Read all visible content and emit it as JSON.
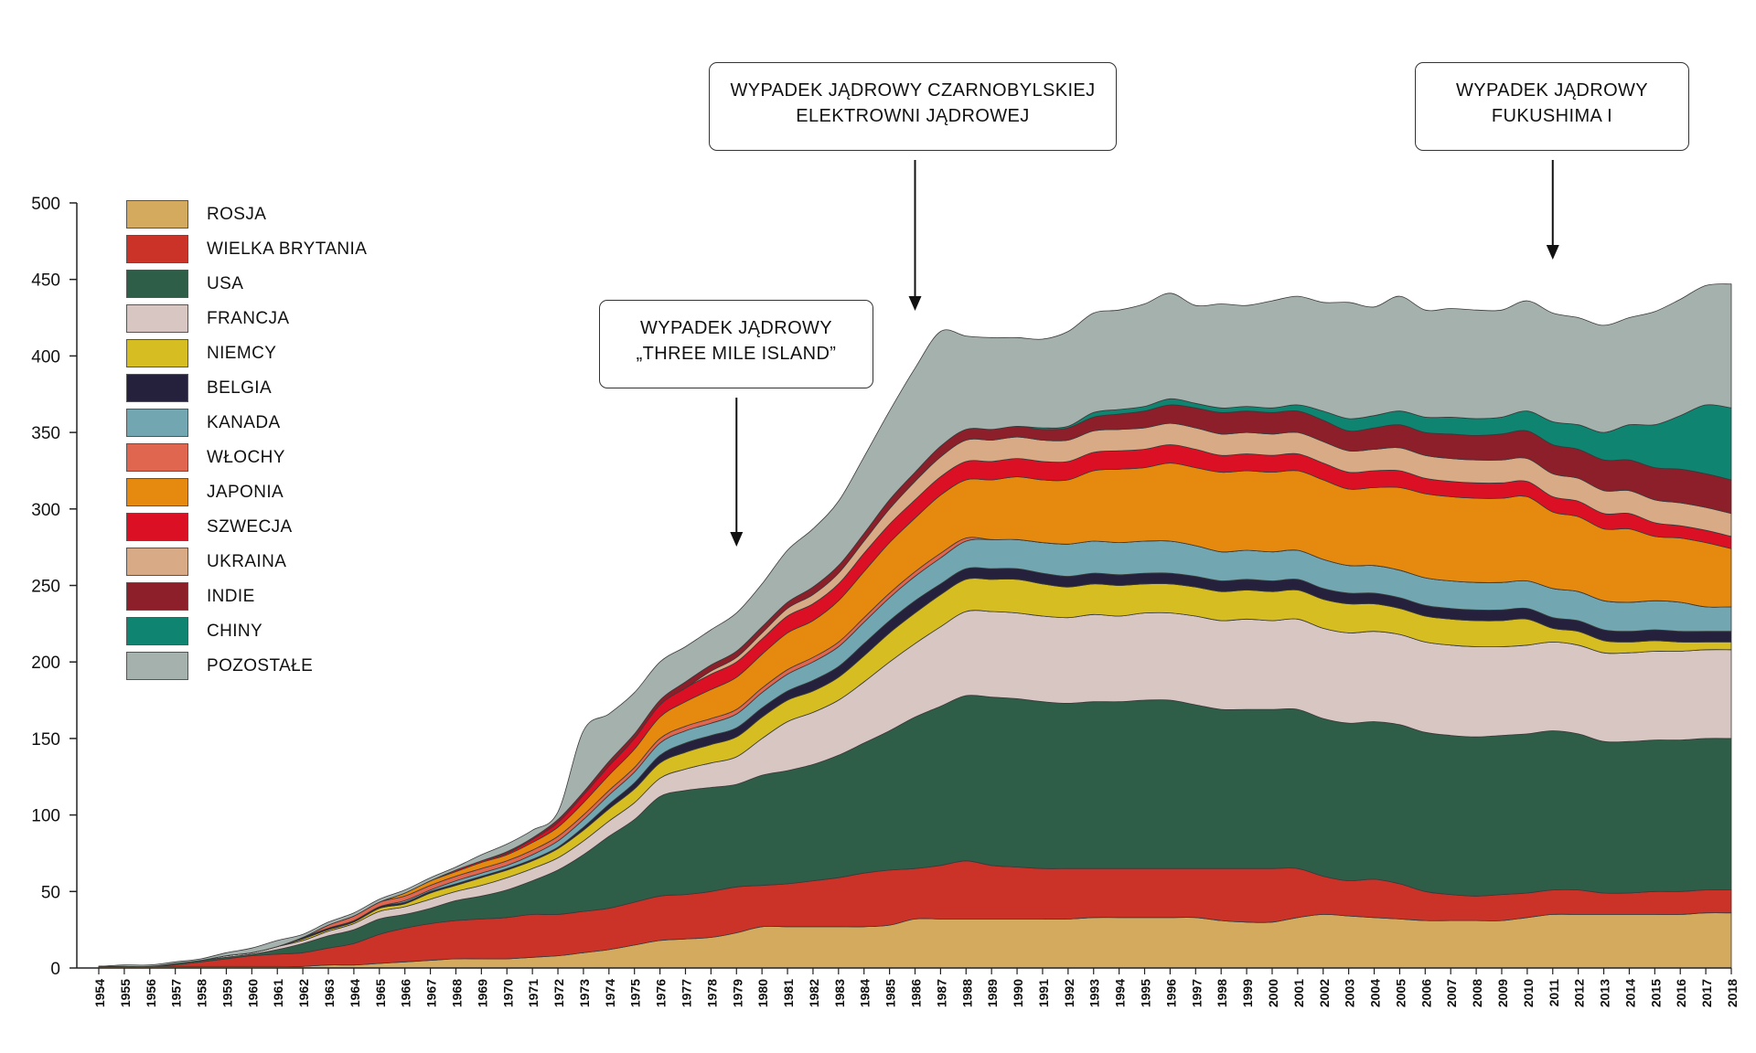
{
  "chart_data": {
    "type": "area",
    "stacked": true,
    "ylim": [
      0,
      500
    ],
    "y_ticks": [
      "0",
      "50",
      "100",
      "150",
      "200",
      "250",
      "300",
      "350",
      "400",
      "450",
      "500"
    ],
    "x": [
      "1954",
      "1955",
      "1956",
      "1957",
      "1958",
      "1959",
      "1960",
      "1961",
      "1962",
      "1963",
      "1964",
      "1965",
      "1966",
      "1967",
      "1968",
      "1969",
      "1970",
      "1971",
      "1972",
      "1973",
      "1974",
      "1975",
      "1976",
      "1977",
      "1978",
      "1979",
      "1980",
      "1981",
      "1982",
      "1983",
      "1984",
      "1985",
      "1986",
      "1987",
      "1988",
      "1989",
      "1990",
      "1991",
      "1992",
      "1993",
      "1994",
      "1995",
      "1996",
      "1997",
      "1998",
      "1999",
      "2000",
      "2001",
      "2002",
      "2003",
      "2004",
      "2005",
      "2006",
      "2007",
      "2008",
      "2009",
      "2010",
      "2011",
      "2012",
      "2013",
      "2014",
      "2015",
      "2016",
      "2017",
      "2018"
    ],
    "legend_position": "top-left",
    "series": [
      {
        "name": "ROSJA",
        "color": "#d4aa5f",
        "values": [
          1,
          1,
          1,
          1,
          1,
          1,
          1,
          1,
          1,
          2,
          2,
          3,
          4,
          5,
          6,
          6,
          6,
          7,
          8,
          10,
          12,
          15,
          18,
          19,
          20,
          23,
          27,
          27,
          27,
          27,
          27,
          28,
          32,
          32,
          32,
          32,
          32,
          32,
          32,
          33,
          33,
          33,
          33,
          33,
          31,
          30,
          30,
          33,
          35,
          34,
          33,
          32,
          31,
          31,
          31,
          31,
          33,
          35,
          35,
          35,
          35,
          35,
          35,
          36,
          36
        ]
      },
      {
        "name": "WIELKA BRYTANIA",
        "color": "#cc3328",
        "values": [
          0,
          0,
          0,
          1,
          3,
          5,
          7,
          8,
          9,
          11,
          14,
          19,
          22,
          24,
          25,
          26,
          27,
          28,
          27,
          27,
          27,
          28,
          29,
          29,
          30,
          30,
          27,
          28,
          30,
          32,
          35,
          36,
          33,
          35,
          38,
          35,
          34,
          33,
          33,
          32,
          32,
          32,
          32,
          32,
          34,
          35,
          35,
          32,
          25,
          23,
          25,
          23,
          19,
          17,
          16,
          17,
          16,
          16,
          16,
          14,
          14,
          15,
          15,
          15,
          15
        ]
      },
      {
        "name": "USA",
        "color": "#2e5e48",
        "values": [
          0,
          0,
          0,
          1,
          1,
          1,
          1,
          3,
          6,
          8,
          9,
          10,
          9,
          10,
          13,
          15,
          18,
          22,
          29,
          37,
          47,
          54,
          65,
          68,
          68,
          67,
          72,
          74,
          76,
          80,
          85,
          91,
          99,
          104,
          108,
          110,
          110,
          109,
          108,
          109,
          109,
          110,
          110,
          107,
          104,
          104,
          104,
          104,
          103,
          103,
          103,
          104,
          104,
          104,
          104,
          104,
          104,
          104,
          102,
          99,
          99,
          99,
          99,
          99,
          99
        ]
      },
      {
        "name": "FRANCJA",
        "color": "#d8c6c3",
        "values": [
          0,
          0,
          0,
          0,
          0,
          1,
          1,
          2,
          2,
          3,
          4,
          5,
          5,
          6,
          6,
          7,
          8,
          8,
          8,
          9,
          10,
          11,
          12,
          14,
          16,
          18,
          24,
          32,
          34,
          36,
          40,
          45,
          48,
          52,
          55,
          56,
          56,
          56,
          56,
          57,
          56,
          57,
          57,
          58,
          58,
          59,
          58,
          59,
          59,
          59,
          59,
          59,
          59,
          59,
          59,
          58,
          58,
          58,
          58,
          58,
          58,
          58,
          58,
          58,
          58
        ]
      },
      {
        "name": "NIEMCY",
        "color": "#d6bd22",
        "values": [
          0,
          0,
          0,
          0,
          0,
          0,
          0,
          0,
          1,
          1,
          1,
          2,
          2,
          4,
          4,
          5,
          5,
          5,
          6,
          7,
          8,
          9,
          10,
          11,
          12,
          13,
          14,
          14,
          14,
          15,
          17,
          19,
          20,
          21,
          21,
          21,
          22,
          21,
          20,
          20,
          20,
          19,
          19,
          19,
          19,
          19,
          19,
          19,
          19,
          19,
          18,
          17,
          17,
          17,
          17,
          17,
          17,
          9,
          9,
          8,
          7,
          7,
          6,
          5,
          5
        ]
      },
      {
        "name": "BELGIA",
        "color": "#25213d",
        "values": [
          0,
          0,
          0,
          0,
          0,
          0,
          0,
          0,
          1,
          1,
          1,
          1,
          1,
          1,
          1,
          1,
          1,
          1,
          1,
          2,
          3,
          4,
          5,
          6,
          6,
          6,
          6,
          6,
          7,
          7,
          8,
          8,
          8,
          7,
          7,
          7,
          7,
          7,
          7,
          7,
          7,
          7,
          7,
          7,
          7,
          7,
          7,
          7,
          7,
          7,
          7,
          7,
          7,
          7,
          7,
          7,
          7,
          7,
          7,
          7,
          7,
          7,
          7,
          7,
          7
        ]
      },
      {
        "name": "KANADA",
        "color": "#72a6b1",
        "values": [
          0,
          0,
          0,
          0,
          0,
          0,
          0,
          0,
          0,
          0,
          0,
          0,
          1,
          1,
          2,
          2,
          2,
          3,
          4,
          5,
          6,
          7,
          8,
          8,
          8,
          9,
          10,
          11,
          12,
          13,
          14,
          15,
          16,
          17,
          18,
          19,
          19,
          20,
          21,
          21,
          21,
          21,
          21,
          20,
          19,
          19,
          19,
          19,
          19,
          18,
          18,
          18,
          18,
          18,
          18,
          18,
          18,
          19,
          19,
          19,
          19,
          19,
          19,
          16,
          16
        ]
      },
      {
        "name": "WŁOCHY",
        "color": "#e06650",
        "values": [
          0,
          0,
          0,
          0,
          0,
          0,
          0,
          0,
          0,
          2,
          3,
          3,
          3,
          3,
          3,
          3,
          3,
          3,
          3,
          3,
          3,
          3,
          3,
          3,
          3,
          3,
          3,
          3,
          3,
          3,
          3,
          3,
          3,
          3,
          2,
          0,
          0,
          0,
          0,
          0,
          0,
          0,
          0,
          0,
          0,
          0,
          0,
          0,
          0,
          0,
          0,
          0,
          0,
          0,
          0,
          0,
          0,
          0,
          0,
          0,
          0,
          0,
          0,
          0,
          0
        ]
      },
      {
        "name": "JAPONIA",
        "color": "#e5890f",
        "values": [
          0,
          0,
          0,
          0,
          0,
          0,
          0,
          0,
          0,
          0,
          0,
          0,
          2,
          3,
          3,
          4,
          4,
          5,
          6,
          8,
          10,
          12,
          14,
          16,
          19,
          21,
          22,
          24,
          24,
          27,
          30,
          33,
          35,
          38,
          38,
          39,
          41,
          41,
          42,
          46,
          48,
          48,
          51,
          51,
          52,
          52,
          52,
          52,
          52,
          50,
          51,
          54,
          55,
          55,
          55,
          55,
          55,
          50,
          49,
          47,
          48,
          42,
          42,
          42,
          38
        ]
      },
      {
        "name": "SZWECJA",
        "color": "#db1025",
        "values": [
          0,
          0,
          0,
          0,
          0,
          0,
          0,
          0,
          0,
          0,
          0,
          0,
          0,
          0,
          1,
          1,
          1,
          2,
          3,
          5,
          6,
          7,
          8,
          9,
          10,
          10,
          10,
          11,
          11,
          11,
          12,
          12,
          12,
          12,
          12,
          12,
          12,
          12,
          12,
          12,
          12,
          12,
          12,
          12,
          11,
          11,
          11,
          11,
          11,
          11,
          11,
          11,
          10,
          10,
          10,
          10,
          10,
          10,
          10,
          10,
          10,
          9,
          8,
          8,
          8
        ]
      },
      {
        "name": "UKRAINA",
        "color": "#d8aa86",
        "values": [
          0,
          0,
          0,
          0,
          0,
          0,
          0,
          0,
          0,
          0,
          0,
          0,
          0,
          0,
          0,
          0,
          0,
          0,
          0,
          0,
          0,
          0,
          0,
          0,
          2,
          3,
          4,
          5,
          6,
          7,
          8,
          10,
          12,
          13,
          14,
          14,
          14,
          14,
          14,
          14,
          14,
          14,
          14,
          14,
          14,
          14,
          14,
          14,
          14,
          14,
          14,
          15,
          15,
          15,
          15,
          15,
          15,
          15,
          15,
          15,
          15,
          15,
          15,
          15,
          15
        ]
      },
      {
        "name": "INDIE",
        "color": "#8c1f2a",
        "values": [
          0,
          0,
          0,
          0,
          0,
          0,
          0,
          0,
          0,
          0,
          0,
          0,
          0,
          0,
          0,
          0,
          1,
          1,
          2,
          2,
          3,
          3,
          3,
          4,
          4,
          4,
          4,
          4,
          5,
          5,
          5,
          6,
          6,
          7,
          7,
          7,
          7,
          7,
          8,
          9,
          10,
          11,
          12,
          13,
          14,
          14,
          14,
          14,
          14,
          13,
          14,
          15,
          15,
          16,
          16,
          17,
          18,
          19,
          19,
          20,
          20,
          21,
          22,
          22,
          22
        ]
      },
      {
        "name": "CHINY",
        "color": "#0f8571",
        "values": [
          0,
          0,
          0,
          0,
          0,
          0,
          0,
          0,
          0,
          0,
          0,
          0,
          0,
          0,
          0,
          0,
          0,
          0,
          0,
          0,
          0,
          0,
          0,
          0,
          0,
          0,
          0,
          0,
          0,
          0,
          0,
          0,
          0,
          0,
          0,
          0,
          0,
          1,
          1,
          3,
          3,
          3,
          4,
          3,
          3,
          3,
          3,
          4,
          6,
          8,
          8,
          9,
          10,
          11,
          11,
          11,
          13,
          15,
          16,
          18,
          23,
          28,
          35,
          45,
          47
        ]
      },
      {
        "name": "POZOSTAŁE",
        "color": "#a4b1ad",
        "values": [
          0,
          1,
          1,
          1,
          1,
          2,
          3,
          4,
          2,
          2,
          2,
          2,
          2,
          2,
          2,
          4,
          5,
          5,
          5,
          40,
          31,
          27,
          25,
          23,
          23,
          25,
          28,
          34,
          38,
          42,
          50,
          58,
          68,
          75,
          61,
          60,
          58,
          58,
          62,
          65,
          65,
          67,
          69,
          64,
          68,
          66,
          70,
          71,
          71,
          76,
          71,
          75,
          70,
          71,
          71,
          70,
          72,
          71,
          70,
          70,
          70,
          74,
          76,
          78,
          81
        ]
      }
    ]
  },
  "annotations": [
    {
      "id": "tmi",
      "year": "1979",
      "lines": [
        "WYPADEK JĄDROWY",
        "„THREE MILE ISLAND”"
      ]
    },
    {
      "id": "chernobyl",
      "year": "1986",
      "lines": [
        "WYPADEK JĄDROWY CZARNOBYLSKIEJ",
        "ELEKTROWNI JĄDROWEJ"
      ]
    },
    {
      "id": "fukushima",
      "year": "2011",
      "lines": [
        "WYPADEK JĄDROWY",
        "FUKUSHIMA I"
      ]
    }
  ]
}
